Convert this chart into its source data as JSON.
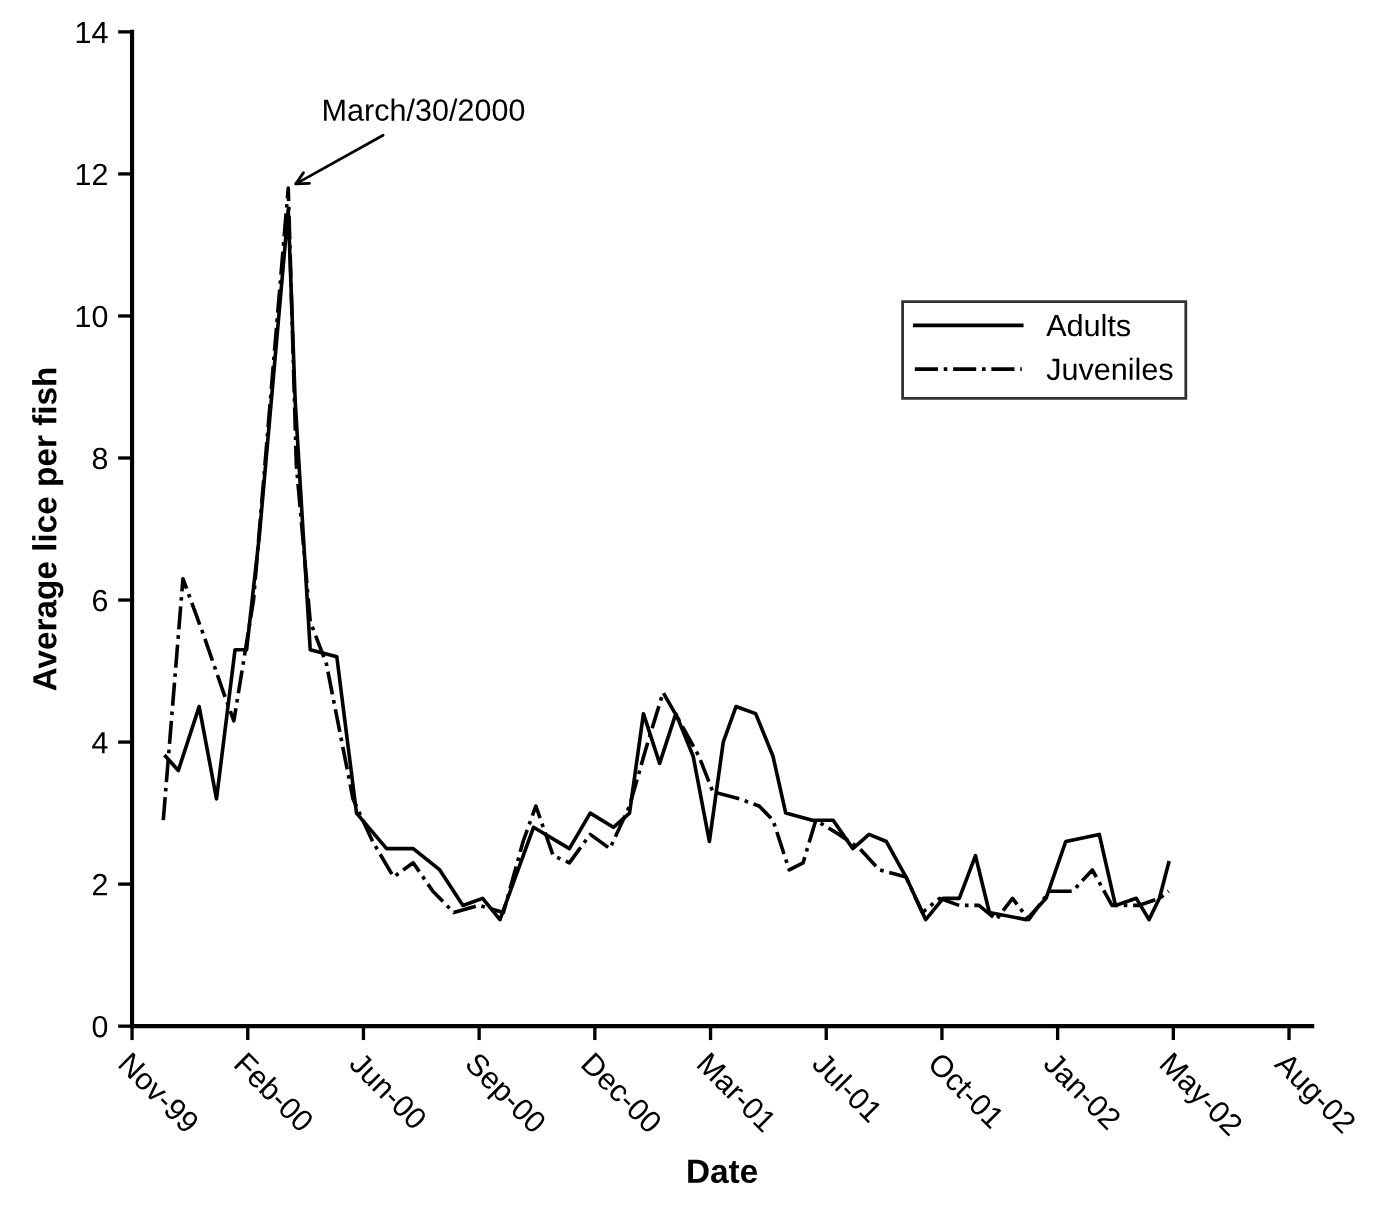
{
  "chart_data": {
    "type": "line",
    "xlabel": "Date",
    "ylabel": "Average lice per fish",
    "annotations": [
      {
        "text": "March/30/2000",
        "x": "2000-03-30",
        "y": 11.8
      }
    ],
    "series": [
      {
        "name": "Adults",
        "color": "#000000",
        "line_style": "solid",
        "x": [
          "1999-12-15",
          "1999-12-26",
          "2000-01-13",
          "2000-01-28",
          "2000-02-13",
          "2000-02-23",
          "2000-03-05",
          "2000-03-30",
          "2000-04-05",
          "2000-04-18",
          "2000-05-11",
          "2000-05-28",
          "2000-06-23",
          "2000-07-16",
          "2000-08-08",
          "2000-08-28",
          "2000-09-14",
          "2000-09-29",
          "2000-10-28",
          "2000-11-28",
          "2000-12-16",
          "2001-01-05",
          "2001-01-19",
          "2001-01-31",
          "2001-02-14",
          "2001-02-28",
          "2001-03-15",
          "2001-03-29",
          "2001-04-10",
          "2001-04-21",
          "2001-05-08",
          "2001-05-23",
          "2001-06-03",
          "2001-06-26",
          "2001-07-14",
          "2001-07-31",
          "2001-08-14",
          "2001-08-29",
          "2001-09-15",
          "2001-10-02",
          "2001-10-17",
          "2001-10-31",
          "2001-11-14",
          "2001-11-26",
          "2001-12-28",
          "2002-01-14",
          "2002-01-31",
          "2002-03-01",
          "2002-03-15",
          "2002-04-02",
          "2002-04-13",
          "2002-04-22",
          "2002-04-30"
        ],
        "values": [
          3.8,
          3.6,
          4.5,
          3.2,
          5.3,
          5.3,
          6.9,
          11.5,
          8.8,
          5.3,
          5.2,
          3.0,
          2.5,
          2.5,
          2.2,
          1.7,
          1.8,
          1.5,
          2.8,
          2.5,
          3.0,
          2.8,
          3.0,
          4.4,
          3.7,
          4.4,
          3.8,
          2.6,
          4.0,
          4.5,
          4.4,
          3.8,
          3.0,
          2.9,
          2.9,
          2.5,
          2.7,
          2.6,
          2.1,
          1.5,
          1.8,
          1.8,
          2.4,
          1.6,
          1.5,
          1.8,
          2.6,
          2.7,
          1.7,
          1.8,
          1.5,
          1.8,
          2.3
        ]
      },
      {
        "name": "Juveniles",
        "color": "#000000",
        "line_style": "dashdot",
        "x": [
          "1999-12-13",
          "1999-12-30",
          "2000-01-17",
          "2000-02-03",
          "2000-02-12",
          "2000-02-20",
          "2000-02-29",
          "2000-03-30",
          "2000-04-06",
          "2000-04-18",
          "2000-05-02",
          "2000-05-25",
          "2000-06-11",
          "2000-06-29",
          "2000-07-16",
          "2000-08-02",
          "2000-08-20",
          "2000-09-11",
          "2000-10-02",
          "2000-10-19",
          "2000-10-30",
          "2000-11-14",
          "2000-11-28",
          "2000-12-16",
          "2001-01-02",
          "2001-01-19",
          "2001-02-02",
          "2001-02-17",
          "2001-03-03",
          "2001-03-20",
          "2001-04-01",
          "2001-04-24",
          "2001-05-11",
          "2001-05-23",
          "2001-06-06",
          "2001-06-18",
          "2001-06-29",
          "2001-07-19",
          "2001-08-06",
          "2001-08-23",
          "2001-09-15",
          "2001-09-29",
          "2001-10-14",
          "2001-10-31",
          "2001-11-17",
          "2001-12-02",
          "2001-12-16",
          "2001-12-30",
          "2002-01-17",
          "2002-02-06",
          "2002-02-23",
          "2002-03-12",
          "2002-04-04",
          "2002-04-22",
          "2002-04-30"
        ],
        "values": [
          2.9,
          6.3,
          5.5,
          4.7,
          4.3,
          5.1,
          6.0,
          11.8,
          7.9,
          5.7,
          5.1,
          3.2,
          2.6,
          2.1,
          2.3,
          1.9,
          1.6,
          1.7,
          1.6,
          2.6,
          3.1,
          2.4,
          2.3,
          2.7,
          2.5,
          3.1,
          3.9,
          4.7,
          4.3,
          3.8,
          3.3,
          3.2,
          3.1,
          2.9,
          2.2,
          2.3,
          2.9,
          2.7,
          2.5,
          2.2,
          2.1,
          1.6,
          1.8,
          1.7,
          1.7,
          1.5,
          1.8,
          1.5,
          1.9,
          1.9,
          2.2,
          1.7,
          1.7,
          1.8,
          1.9
        ]
      }
    ],
    "xlim": [
      "1999-11-16",
      "2002-09-01"
    ],
    "xticks": [
      {
        "value": "1999-11-16",
        "label": "Nov-99"
      },
      {
        "value": "2000-02-24",
        "label": "Feb-00"
      },
      {
        "value": "2000-06-03",
        "label": "Jun-00"
      },
      {
        "value": "2000-09-11",
        "label": "Sep-00"
      },
      {
        "value": "2000-12-20",
        "label": "Dec-00"
      },
      {
        "value": "2001-03-30",
        "label": "Mar-01"
      },
      {
        "value": "2001-07-08",
        "label": "Jul-01"
      },
      {
        "value": "2001-10-16",
        "label": "Oct-01"
      },
      {
        "value": "2002-01-24",
        "label": "Jan-02"
      },
      {
        "value": "2002-05-04",
        "label": "May-02"
      },
      {
        "value": "2002-08-12",
        "label": "Aug-02"
      }
    ],
    "ylim": [
      0,
      14
    ],
    "yticks": [
      0,
      2,
      4,
      6,
      8,
      10,
      12,
      14
    ],
    "grid": false,
    "legend": "right",
    "marker": "none"
  }
}
